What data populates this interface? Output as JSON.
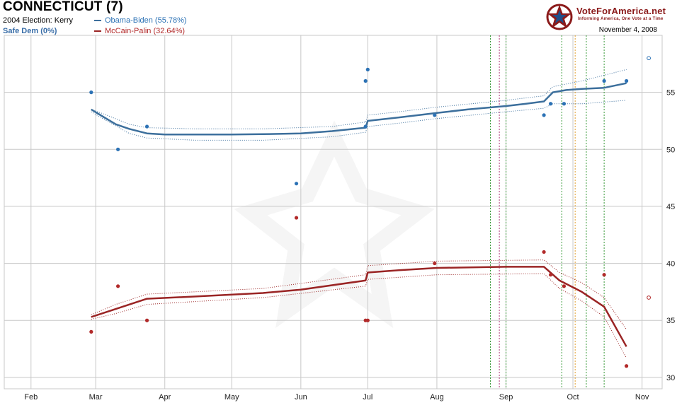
{
  "header": {
    "title": "CONNECTICUT (7)",
    "prior_election": "2004 Election: Kerry",
    "rating": "Safe Dem (0%)",
    "brand": "VoteForAmerica.net",
    "tagline": "Informing America, One Vote at a Time",
    "date": "November 4, 2008"
  },
  "colors": {
    "dem": "#2c72b5",
    "dem_line": "#3c6f9c",
    "rep": "#b22a2a",
    "rep_line": "#9a2424",
    "grid": "#c8c8c8",
    "brand": "#8b1a1a"
  },
  "chart_data": {
    "type": "line",
    "x_tick_labels": [
      "Feb",
      "Mar",
      "Apr",
      "May",
      "Jun",
      "Jul",
      "Aug",
      "Sep",
      "Oct",
      "Nov"
    ],
    "x_range": [
      "2008-01-20",
      "2008-11-10"
    ],
    "y_ticks": [
      30,
      35,
      40,
      45,
      50,
      55
    ],
    "ylim": [
      29,
      60
    ],
    "grid": true,
    "legend_position": "top-left",
    "series": [
      {
        "name": "Obama-Biden (55.78%)",
        "key": "dem",
        "trend": [
          [
            "2008-02-28",
            53.5
          ],
          [
            "2008-03-04",
            52.9
          ],
          [
            "2008-03-10",
            52.2
          ],
          [
            "2008-03-16",
            51.8
          ],
          [
            "2008-03-24",
            51.4
          ],
          [
            "2008-04-01",
            51.3
          ],
          [
            "2008-04-15",
            51.3
          ],
          [
            "2008-05-01",
            51.3
          ],
          [
            "2008-05-20",
            51.35
          ],
          [
            "2008-06-01",
            51.4
          ],
          [
            "2008-06-15",
            51.6
          ],
          [
            "2008-06-25",
            51.8
          ],
          [
            "2008-06-30",
            51.9
          ],
          [
            "2008-07-01",
            52.5
          ],
          [
            "2008-07-15",
            52.8
          ],
          [
            "2008-08-01",
            53.2
          ],
          [
            "2008-08-15",
            53.5
          ],
          [
            "2008-09-01",
            53.8
          ],
          [
            "2008-09-10",
            54.0
          ],
          [
            "2008-09-18",
            54.2
          ],
          [
            "2008-09-22",
            55.0
          ],
          [
            "2008-09-28",
            55.2
          ],
          [
            "2008-10-05",
            55.3
          ],
          [
            "2008-10-15",
            55.4
          ],
          [
            "2008-10-25",
            55.8
          ]
        ],
        "upper": [
          [
            "2008-02-28",
            53.5
          ],
          [
            "2008-03-06",
            53.0
          ],
          [
            "2008-03-16",
            52.2
          ],
          [
            "2008-03-24",
            51.9
          ],
          [
            "2008-04-15",
            51.8
          ],
          [
            "2008-05-15",
            51.8
          ],
          [
            "2008-06-15",
            52.0
          ],
          [
            "2008-06-30",
            52.4
          ],
          [
            "2008-07-01",
            53.0
          ],
          [
            "2008-07-15",
            53.3
          ],
          [
            "2008-08-01",
            53.7
          ],
          [
            "2008-09-01",
            54.3
          ],
          [
            "2008-09-18",
            54.7
          ],
          [
            "2008-09-22",
            55.5
          ],
          [
            "2008-10-05",
            56.0
          ],
          [
            "2008-10-25",
            57.0
          ]
        ],
        "lower": [
          [
            "2008-02-28",
            53.3
          ],
          [
            "2008-03-06",
            52.5
          ],
          [
            "2008-03-16",
            51.4
          ],
          [
            "2008-03-24",
            51.0
          ],
          [
            "2008-04-15",
            50.8
          ],
          [
            "2008-05-15",
            50.8
          ],
          [
            "2008-06-15",
            51.1
          ],
          [
            "2008-06-30",
            51.5
          ],
          [
            "2008-07-01",
            52.0
          ],
          [
            "2008-07-15",
            52.3
          ],
          [
            "2008-08-01",
            52.7
          ],
          [
            "2008-09-01",
            53.3
          ],
          [
            "2008-09-18",
            53.6
          ],
          [
            "2008-09-22",
            54.0
          ],
          [
            "2008-10-05",
            54.0
          ],
          [
            "2008-10-25",
            54.3
          ]
        ],
        "polls": [
          [
            "2008-02-28",
            55
          ],
          [
            "2008-03-11",
            50
          ],
          [
            "2008-03-24",
            52
          ],
          [
            "2008-05-30",
            47
          ],
          [
            "2008-06-30",
            56
          ],
          [
            "2008-07-01",
            57
          ],
          [
            "2008-06-30",
            52
          ],
          [
            "2008-07-31",
            53
          ],
          [
            "2008-09-18",
            53
          ],
          [
            "2008-09-21",
            54
          ],
          [
            "2008-09-27",
            54
          ],
          [
            "2008-10-15",
            56
          ],
          [
            "2008-10-25",
            56
          ]
        ]
      },
      {
        "name": "McCain-Palin (32.64%)",
        "key": "rep",
        "trend": [
          [
            "2008-02-28",
            35.3
          ],
          [
            "2008-03-10",
            36.0
          ],
          [
            "2008-03-24",
            36.9
          ],
          [
            "2008-04-15",
            37.1
          ],
          [
            "2008-05-15",
            37.4
          ],
          [
            "2008-06-01",
            37.7
          ],
          [
            "2008-06-30",
            38.5
          ],
          [
            "2008-07-01",
            39.2
          ],
          [
            "2008-07-15",
            39.4
          ],
          [
            "2008-08-01",
            39.6
          ],
          [
            "2008-09-01",
            39.7
          ],
          [
            "2008-09-18",
            39.7
          ],
          [
            "2008-09-25",
            38.5
          ],
          [
            "2008-10-05",
            37.5
          ],
          [
            "2008-10-15",
            36.2
          ],
          [
            "2008-10-25",
            32.7
          ]
        ],
        "upper": [
          [
            "2008-02-28",
            35.5
          ],
          [
            "2008-03-10",
            36.4
          ],
          [
            "2008-03-24",
            37.3
          ],
          [
            "2008-05-15",
            37.8
          ],
          [
            "2008-06-30",
            39.0
          ],
          [
            "2008-07-01",
            39.8
          ],
          [
            "2008-08-01",
            40.2
          ],
          [
            "2008-09-18",
            40.3
          ],
          [
            "2008-09-25",
            39.2
          ],
          [
            "2008-10-05",
            38.3
          ],
          [
            "2008-10-15",
            37.0
          ],
          [
            "2008-10-25",
            34.2
          ]
        ],
        "lower": [
          [
            "2008-02-28",
            35.1
          ],
          [
            "2008-03-10",
            35.6
          ],
          [
            "2008-03-24",
            36.4
          ],
          [
            "2008-05-15",
            37.0
          ],
          [
            "2008-06-30",
            38.0
          ],
          [
            "2008-07-01",
            38.6
          ],
          [
            "2008-08-01",
            39.0
          ],
          [
            "2008-09-18",
            39.1
          ],
          [
            "2008-09-25",
            37.8
          ],
          [
            "2008-10-05",
            36.7
          ],
          [
            "2008-10-15",
            35.3
          ],
          [
            "2008-10-25",
            31.7
          ]
        ],
        "polls": [
          [
            "2008-02-28",
            34
          ],
          [
            "2008-03-11",
            38
          ],
          [
            "2008-03-24",
            35
          ],
          [
            "2008-05-30",
            44
          ],
          [
            "2008-06-30",
            35
          ],
          [
            "2008-07-01",
            35
          ],
          [
            "2008-07-31",
            40
          ],
          [
            "2008-09-18",
            41
          ],
          [
            "2008-09-21",
            39
          ],
          [
            "2008-09-27",
            38
          ],
          [
            "2008-10-15",
            39
          ],
          [
            "2008-10-25",
            31
          ]
        ]
      }
    ],
    "event_lines": [
      {
        "date": "2008-08-25",
        "color": "#3a9a3a"
      },
      {
        "date": "2008-08-29",
        "color": "#b23a7a"
      },
      {
        "date": "2008-09-01",
        "color": "#3a9a3a"
      },
      {
        "date": "2008-09-26",
        "color": "#3a9a3a"
      },
      {
        "date": "2008-10-02",
        "color": "#e0a030"
      },
      {
        "date": "2008-10-07",
        "color": "#3a9a3a"
      },
      {
        "date": "2008-10-15",
        "color": "#3a9a3a"
      }
    ],
    "election_markers": [
      {
        "date": "2008-11-04",
        "value": 58,
        "key": "dem"
      },
      {
        "date": "2008-11-04",
        "value": 37,
        "key": "rep"
      }
    ]
  }
}
